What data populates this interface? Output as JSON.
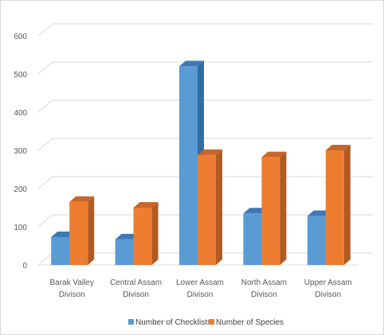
{
  "chart_data": {
    "type": "bar",
    "style": "3d-clustered-column",
    "categories": [
      [
        "Barak Valley",
        "Divison"
      ],
      [
        "Central Assam",
        "Divison"
      ],
      [
        "Lower Assam",
        "Divison"
      ],
      [
        "North Assam",
        "Divison"
      ],
      [
        "Upper Assam",
        "Divison"
      ]
    ],
    "series": [
      {
        "name": "Number of Checklists",
        "color": "#5B9BD5",
        "side_color": "#2E6DA8",
        "top_color": "#3F79B5",
        "values": [
          73,
          67,
          520,
          135,
          128
        ]
      },
      {
        "name": "Number of Species",
        "color": "#ED7D31",
        "side_color": "#B25A1F",
        "top_color": "#C8652A",
        "values": [
          165,
          150,
          288,
          282,
          300
        ]
      }
    ],
    "ylim": [
      0,
      600
    ],
    "yticks": [
      "0",
      "100",
      "200",
      "300",
      "400",
      "500",
      "600"
    ],
    "grid": true,
    "legend_position": "bottom"
  }
}
